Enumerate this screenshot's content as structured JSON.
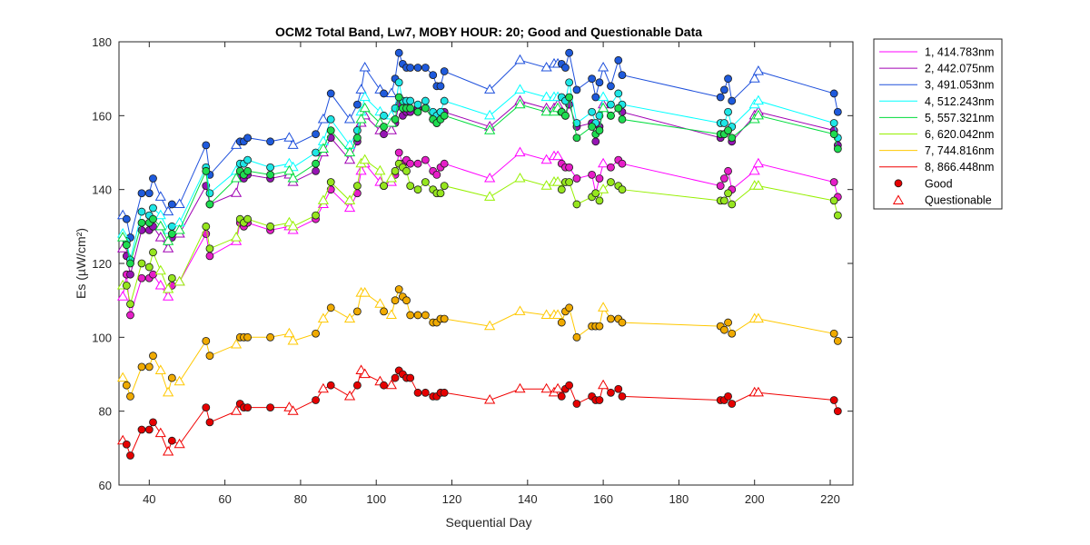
{
  "chart_data": {
    "type": "line",
    "title": "OCM2 Total Band,  Lw7, MOBY HOUR: 20;  Good and Questionable Data",
    "xlabel": "Sequential Day",
    "ylabel": "Es (µW/cm²)",
    "xlim": [
      32,
      226
    ],
    "ylim": [
      60,
      180
    ],
    "xticks": [
      40,
      60,
      80,
      100,
      120,
      140,
      160,
      180,
      200,
      220
    ],
    "yticks": [
      60,
      80,
      100,
      120,
      140,
      160,
      180
    ],
    "grid": false,
    "legend_position": "outside-right",
    "legend_markers": [
      {
        "name": "Good",
        "marker": "circle"
      },
      {
        "name": "Questionable",
        "marker": "triangle"
      }
    ],
    "days": [
      33,
      34,
      35,
      38,
      40,
      41,
      43,
      45,
      46,
      48,
      55,
      56,
      63,
      64,
      65,
      66,
      72,
      77,
      78,
      84,
      86,
      88,
      93,
      95,
      96,
      97,
      101,
      102,
      104,
      105,
      106,
      107,
      108,
      109,
      111,
      113,
      115,
      116,
      117,
      118,
      130,
      138,
      145,
      147,
      148,
      149,
      150,
      151,
      153,
      157,
      158,
      159,
      160,
      162,
      164,
      165,
      191,
      192,
      193,
      194,
      200,
      201,
      221,
      222
    ],
    "quality": [
      "Q",
      "G",
      "G",
      "G",
      "G",
      "G",
      "Q",
      "Q",
      "G",
      "Q",
      "G",
      "G",
      "Q",
      "G",
      "G",
      "G",
      "G",
      "Q",
      "Q",
      "G",
      "Q",
      "G",
      "Q",
      "G",
      "Q",
      "Q",
      "Q",
      "G",
      "Q",
      "G",
      "G",
      "G",
      "G",
      "G",
      "G",
      "G",
      "G",
      "G",
      "G",
      "G",
      "Q",
      "Q",
      "Q",
      "Q",
      "Q",
      "G",
      "G",
      "G",
      "G",
      "G",
      "G",
      "G",
      "Q",
      "G",
      "G",
      "G",
      "G",
      "G",
      "G",
      "G",
      "Q",
      "Q",
      "G",
      "G"
    ],
    "series": [
      {
        "name": "1, 414.783nm",
        "color": "#ff00ff",
        "marker_color": "#e61ec8",
        "values": [
          111,
          117,
          106,
          116,
          116,
          117,
          114,
          111,
          114,
          115,
          128,
          122,
          126,
          131,
          130,
          131,
          129,
          130,
          129,
          132,
          136,
          140,
          135,
          139,
          145,
          147,
          142,
          141,
          142,
          144,
          150,
          147,
          148,
          147,
          147,
          148,
          145,
          144,
          146,
          147,
          143,
          150,
          148,
          149,
          149,
          147,
          146,
          146,
          143,
          144,
          139,
          143,
          147,
          146,
          148,
          147,
          141,
          143,
          145,
          140,
          145,
          147,
          142,
          138
        ]
      },
      {
        "name": "2, 442.075nm",
        "color": "#a000b4",
        "marker_color": "#9614b4",
        "values": [
          124,
          122,
          117,
          129,
          129,
          130,
          127,
          124,
          127,
          128,
          141,
          136,
          139,
          144,
          143,
          144,
          143,
          144,
          142,
          145,
          150,
          154,
          148,
          153,
          158,
          160,
          156,
          155,
          156,
          158,
          163,
          160,
          161,
          161,
          162,
          162,
          159,
          158,
          160,
          161,
          157,
          164,
          162,
          162,
          163,
          161,
          160,
          163,
          157,
          158,
          153,
          157,
          163,
          160,
          162,
          161,
          154,
          155,
          156,
          153,
          160,
          161,
          156,
          152
        ]
      },
      {
        "name": "3, 491.053nm",
        "color": "#1e50dc",
        "marker_color": "#1e5adc",
        "values": [
          133,
          132,
          127,
          139,
          139,
          143,
          138,
          134,
          136,
          136,
          152,
          144,
          152,
          153,
          153,
          154,
          153,
          154,
          152,
          155,
          159,
          166,
          159,
          163,
          167,
          173,
          167,
          166,
          166,
          170,
          177,
          174,
          173,
          173,
          173,
          173,
          171,
          168,
          168,
          172,
          167,
          175,
          173,
          174,
          174,
          174,
          173,
          177,
          167,
          170,
          165,
          169,
          173,
          168,
          175,
          171,
          165,
          167,
          170,
          164,
          170,
          172,
          166,
          161
        ]
      },
      {
        "name": "4, 512.243nm",
        "color": "#00ffff",
        "marker_color": "#1ee6e6",
        "values": [
          128,
          126,
          121,
          134,
          133,
          135,
          133,
          129,
          130,
          131,
          146,
          139,
          145,
          147,
          147,
          148,
          146,
          147,
          146,
          150,
          153,
          159,
          152,
          156,
          161,
          165,
          161,
          160,
          160,
          162,
          169,
          164,
          164,
          164,
          163,
          164,
          161,
          160,
          161,
          164,
          160,
          167,
          165,
          165,
          165,
          165,
          164,
          169,
          158,
          161,
          158,
          160,
          165,
          163,
          166,
          163,
          158,
          158,
          161,
          157,
          163,
          164,
          158,
          154
        ]
      },
      {
        "name": "5, 557.321nm",
        "color": "#00dc3c",
        "marker_color": "#1edc50",
        "values": [
          127,
          125,
          120,
          131,
          131,
          132,
          130,
          126,
          128,
          129,
          145,
          136,
          143,
          145,
          144,
          145,
          144,
          145,
          143,
          147,
          151,
          156,
          150,
          154,
          159,
          162,
          158,
          157,
          158,
          159,
          165,
          162,
          162,
          162,
          161,
          162,
          159,
          158,
          159,
          160,
          156,
          163,
          161,
          161,
          162,
          161,
          160,
          165,
          154,
          157,
          155,
          156,
          162,
          160,
          162,
          159,
          155,
          155,
          156,
          154,
          159,
          160,
          155,
          151
        ]
      },
      {
        "name": "6, 620.042nm",
        "color": "#96f000",
        "marker_color": "#96e61e",
        "values": [
          114,
          114,
          109,
          120,
          119,
          123,
          118,
          113,
          116,
          115,
          130,
          124,
          127,
          132,
          131,
          132,
          130,
          131,
          130,
          133,
          137,
          142,
          137,
          141,
          147,
          148,
          145,
          141,
          143,
          145,
          147,
          146,
          145,
          141,
          140,
          142,
          140,
          139,
          139,
          141,
          138,
          143,
          141,
          142,
          142,
          140,
          142,
          142,
          136,
          138,
          139,
          137,
          140,
          142,
          141,
          140,
          137,
          137,
          139,
          136,
          141,
          141,
          137,
          133
        ]
      },
      {
        "name": "7, 744.816nm",
        "color": "#ffc800",
        "marker_color": "#f0aa00",
        "values": [
          89,
          87,
          84,
          92,
          92,
          95,
          91,
          85,
          89,
          88,
          99,
          95,
          98,
          100,
          100,
          100,
          100,
          101,
          99,
          101,
          105,
          108,
          105,
          107,
          112,
          112,
          109,
          107,
          106,
          110,
          113,
          111,
          110,
          106,
          106,
          106,
          104,
          104,
          105,
          105,
          103,
          107,
          106,
          106,
          106,
          104,
          107,
          108,
          100,
          103,
          103,
          103,
          108,
          105,
          105,
          104,
          103,
          102,
          104,
          101,
          105,
          105,
          101,
          99
        ]
      },
      {
        "name": "8, 866.448nm",
        "color": "#f00000",
        "marker_color": "#e60000",
        "values": [
          72,
          71,
          68,
          75,
          75,
          77,
          74,
          69,
          72,
          71,
          81,
          77,
          80,
          82,
          81,
          81,
          81,
          81,
          80,
          83,
          86,
          87,
          84,
          87,
          91,
          90,
          88,
          87,
          87,
          89,
          91,
          90,
          89,
          89,
          85,
          85,
          84,
          84,
          85,
          85,
          83,
          86,
          86,
          85,
          86,
          84,
          86,
          87,
          82,
          84,
          83,
          83,
          87,
          85,
          86,
          84,
          83,
          83,
          84,
          82,
          85,
          85,
          83,
          80
        ]
      }
    ]
  }
}
